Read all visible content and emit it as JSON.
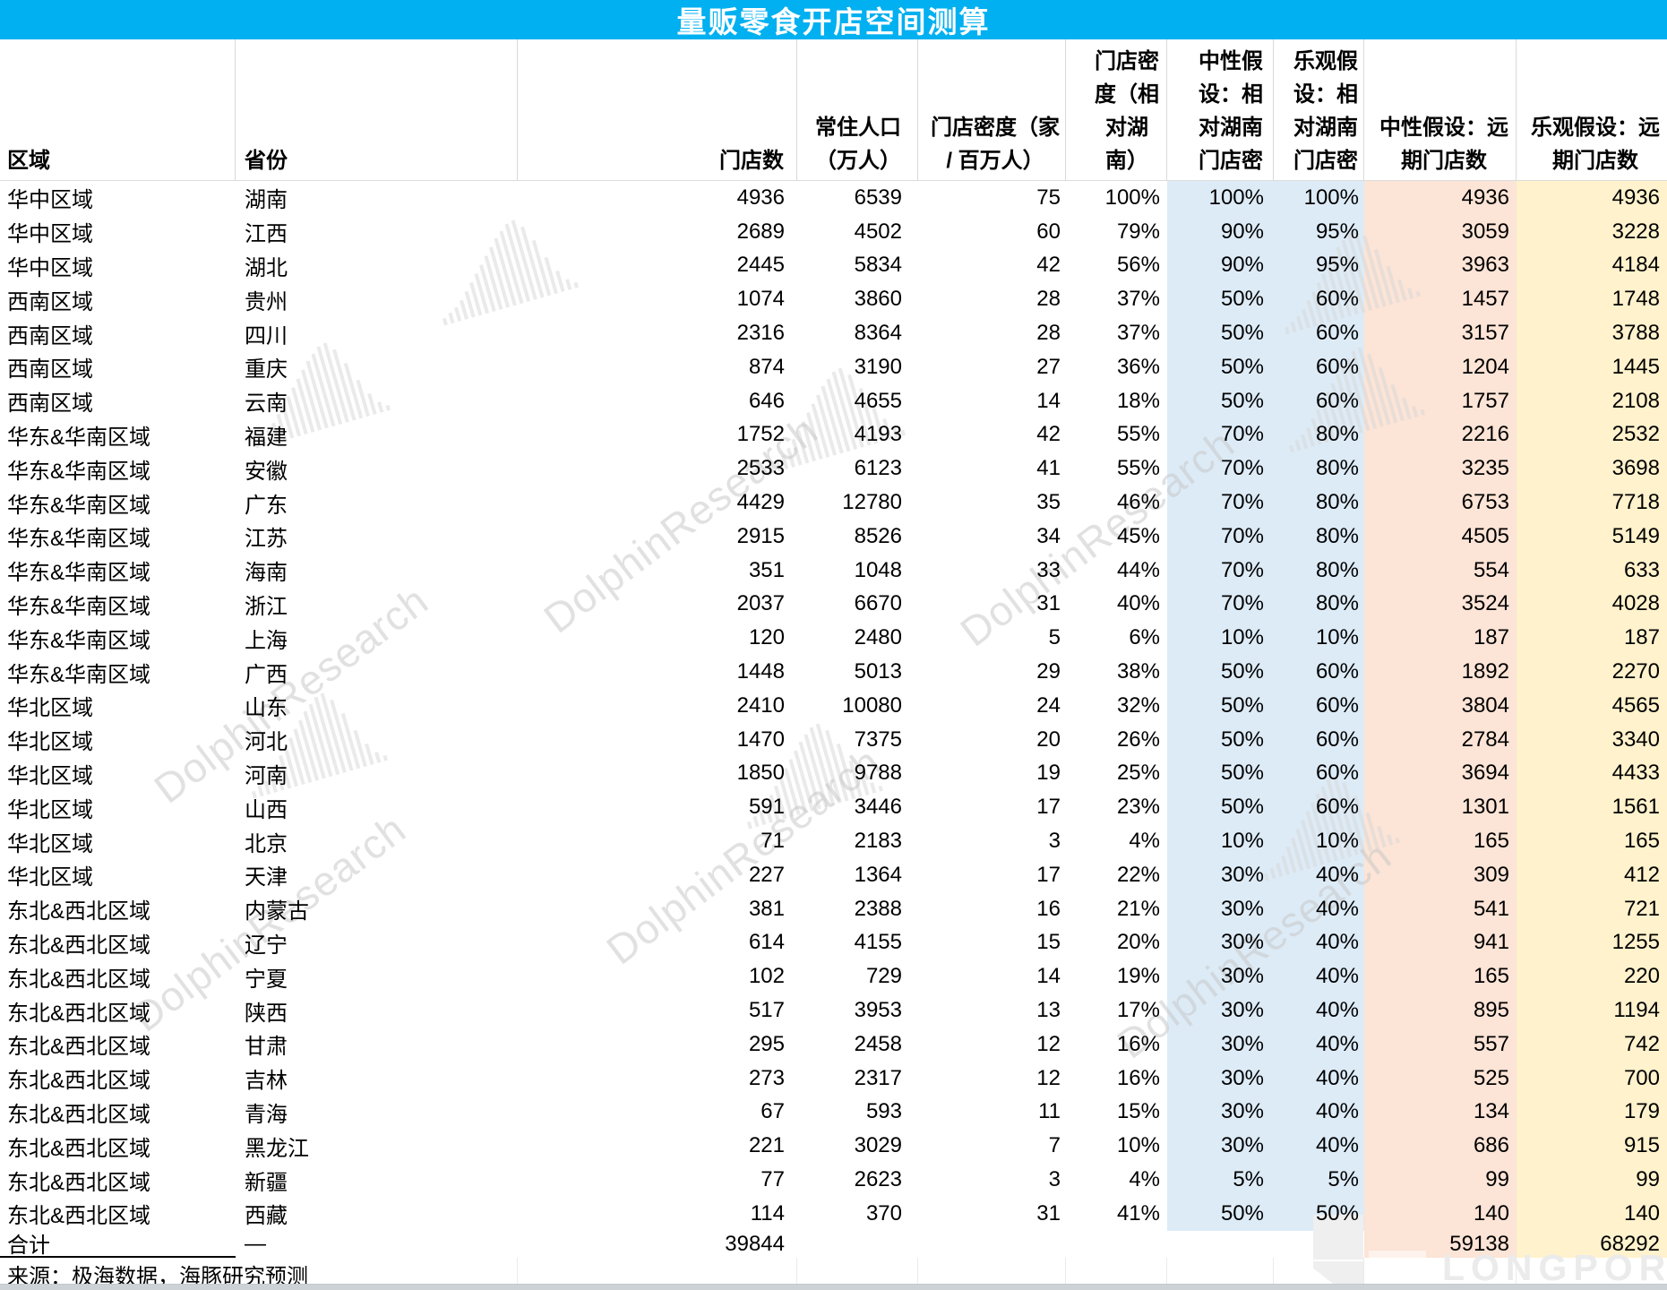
{
  "title": "量贩零食开店空间测算",
  "colors": {
    "title_bg": "#00B0F0",
    "band_blue": "#DDEBF7",
    "band_pink": "#FCE4D6",
    "band_yellow": "#FFF2CC"
  },
  "table": {
    "columns": [
      "区域",
      "省份",
      "门店数",
      "常住人口\n（万人）",
      "门店密度（家\n/ 百万人）",
      "门店密\n度（相\n对湖\n南）",
      "中性假\n设：相\n对湖南\n门店密",
      "乐观假\n设：相\n对湖南\n门店密",
      "中性假设：远\n期门店数",
      "乐观假设：远\n期门店数"
    ],
    "rows": [
      [
        "华中区域",
        "湖南",
        "4936",
        "6539",
        "75",
        "100%",
        "100%",
        "100%",
        "4936",
        "4936"
      ],
      [
        "华中区域",
        "江西",
        "2689",
        "4502",
        "60",
        "79%",
        "90%",
        "95%",
        "3059",
        "3228"
      ],
      [
        "华中区域",
        "湖北",
        "2445",
        "5834",
        "42",
        "56%",
        "90%",
        "95%",
        "3963",
        "4184"
      ],
      [
        "西南区域",
        "贵州",
        "1074",
        "3860",
        "28",
        "37%",
        "50%",
        "60%",
        "1457",
        "1748"
      ],
      [
        "西南区域",
        "四川",
        "2316",
        "8364",
        "28",
        "37%",
        "50%",
        "60%",
        "3157",
        "3788"
      ],
      [
        "西南区域",
        "重庆",
        "874",
        "3190",
        "27",
        "36%",
        "50%",
        "60%",
        "1204",
        "1445"
      ],
      [
        "西南区域",
        "云南",
        "646",
        "4655",
        "14",
        "18%",
        "50%",
        "60%",
        "1757",
        "2108"
      ],
      [
        "华东&华南区域",
        "福建",
        "1752",
        "4193",
        "42",
        "55%",
        "70%",
        "80%",
        "2216",
        "2532"
      ],
      [
        "华东&华南区域",
        "安徽",
        "2533",
        "6123",
        "41",
        "55%",
        "70%",
        "80%",
        "3235",
        "3698"
      ],
      [
        "华东&华南区域",
        "广东",
        "4429",
        "12780",
        "35",
        "46%",
        "70%",
        "80%",
        "6753",
        "7718"
      ],
      [
        "华东&华南区域",
        "江苏",
        "2915",
        "8526",
        "34",
        "45%",
        "70%",
        "80%",
        "4505",
        "5149"
      ],
      [
        "华东&华南区域",
        "海南",
        "351",
        "1048",
        "33",
        "44%",
        "70%",
        "80%",
        "554",
        "633"
      ],
      [
        "华东&华南区域",
        "浙江",
        "2037",
        "6670",
        "31",
        "40%",
        "70%",
        "80%",
        "3524",
        "4028"
      ],
      [
        "华东&华南区域",
        "上海",
        "120",
        "2480",
        "5",
        "6%",
        "10%",
        "10%",
        "187",
        "187"
      ],
      [
        "华东&华南区域",
        "广西",
        "1448",
        "5013",
        "29",
        "38%",
        "50%",
        "60%",
        "1892",
        "2270"
      ],
      [
        "华北区域",
        "山东",
        "2410",
        "10080",
        "24",
        "32%",
        "50%",
        "60%",
        "3804",
        "4565"
      ],
      [
        "华北区域",
        "河北",
        "1470",
        "7375",
        "20",
        "26%",
        "50%",
        "60%",
        "2784",
        "3340"
      ],
      [
        "华北区域",
        "河南",
        "1850",
        "9788",
        "19",
        "25%",
        "50%",
        "60%",
        "3694",
        "4433"
      ],
      [
        "华北区域",
        "山西",
        "591",
        "3446",
        "17",
        "23%",
        "50%",
        "60%",
        "1301",
        "1561"
      ],
      [
        "华北区域",
        "北京",
        "71",
        "2183",
        "3",
        "4%",
        "10%",
        "10%",
        "165",
        "165"
      ],
      [
        "华北区域",
        "天津",
        "227",
        "1364",
        "17",
        "22%",
        "30%",
        "40%",
        "309",
        "412"
      ],
      [
        "东北&西北区域",
        "内蒙古",
        "381",
        "2388",
        "16",
        "21%",
        "30%",
        "40%",
        "541",
        "721"
      ],
      [
        "东北&西北区域",
        "辽宁",
        "614",
        "4155",
        "15",
        "20%",
        "30%",
        "40%",
        "941",
        "1255"
      ],
      [
        "东北&西北区域",
        "宁夏",
        "102",
        "729",
        "14",
        "19%",
        "30%",
        "40%",
        "165",
        "220"
      ],
      [
        "东北&西北区域",
        "陕西",
        "517",
        "3953",
        "13",
        "17%",
        "30%",
        "40%",
        "895",
        "1194"
      ],
      [
        "东北&西北区域",
        "甘肃",
        "295",
        "2458",
        "12",
        "16%",
        "30%",
        "40%",
        "557",
        "742"
      ],
      [
        "东北&西北区域",
        "吉林",
        "273",
        "2317",
        "12",
        "16%",
        "30%",
        "40%",
        "525",
        "700"
      ],
      [
        "东北&西北区域",
        "青海",
        "67",
        "593",
        "11",
        "15%",
        "30%",
        "40%",
        "134",
        "179"
      ],
      [
        "东北&西北区域",
        "黑龙江",
        "221",
        "3029",
        "7",
        "10%",
        "30%",
        "40%",
        "686",
        "915"
      ],
      [
        "东北&西北区域",
        "新疆",
        "77",
        "2623",
        "3",
        "4%",
        "5%",
        "5%",
        "99",
        "99"
      ],
      [
        "东北&西北区域",
        "西藏",
        "114",
        "370",
        "31",
        "41%",
        "50%",
        "50%",
        "140",
        "140"
      ]
    ],
    "total": {
      "label": "合计",
      "province": "—",
      "stores": "39844",
      "neutral_far": "59138",
      "optimistic_far": "68292"
    }
  },
  "source": "来源：极海数据，海豚研究预测",
  "watermark": {
    "text": "DolphinResearch",
    "brand": "LONGPORT"
  }
}
